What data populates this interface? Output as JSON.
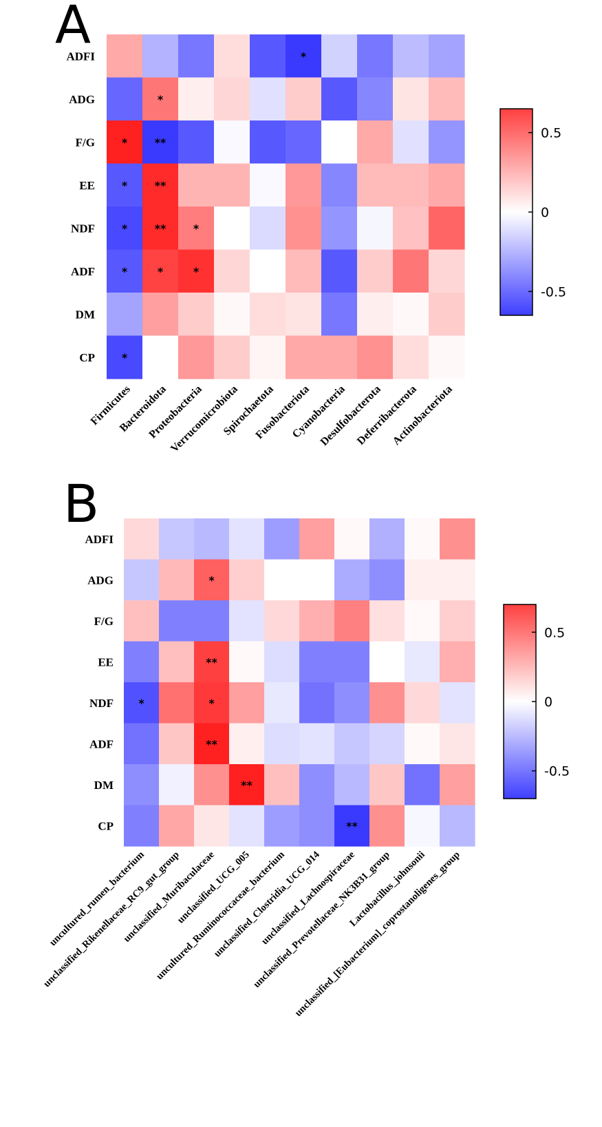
{
  "chart_data": [
    {
      "type": "heatmap",
      "panel": "A",
      "rows": [
        "ADFI",
        "ADG",
        "F/G",
        "EE",
        "NDF",
        "ADF",
        "DM",
        "CP"
      ],
      "columns": [
        "Firmicutes",
        "Bacteroidota",
        "Proteobacteria",
        "Verrucomicrobiota",
        "Spirochaetota",
        "Fusobacteriota",
        "Cyanobacteria",
        "Desulfobacterota",
        "Deferribacterota",
        "Actinobacteriota"
      ],
      "values": [
        [
          0.25,
          -0.25,
          -0.45,
          0.1,
          -0.55,
          -0.65,
          -0.15,
          -0.45,
          -0.22,
          -0.3
        ],
        [
          -0.5,
          0.4,
          0.05,
          0.12,
          -0.1,
          0.15,
          -0.55,
          -0.4,
          0.08,
          0.2
        ],
        [
          0.65,
          -0.65,
          -0.55,
          -0.02,
          -0.55,
          -0.5,
          0.0,
          0.25,
          -0.1,
          -0.35
        ],
        [
          -0.55,
          0.62,
          0.22,
          0.22,
          -0.02,
          0.3,
          -0.4,
          0.2,
          0.2,
          0.25
        ],
        [
          -0.6,
          0.62,
          0.38,
          0.0,
          -0.12,
          0.32,
          -0.35,
          -0.03,
          0.18,
          0.45
        ],
        [
          -0.55,
          0.55,
          0.6,
          0.12,
          0.0,
          0.2,
          -0.55,
          0.15,
          0.4,
          0.12
        ],
        [
          -0.3,
          0.28,
          0.15,
          0.02,
          0.1,
          0.08,
          -0.45,
          0.05,
          0.02,
          0.15
        ],
        [
          -0.6,
          0.0,
          0.3,
          0.15,
          0.03,
          0.25,
          0.25,
          0.32,
          0.1,
          0.02
        ]
      ],
      "stars": [
        [
          "",
          "",
          "",
          "",
          "",
          "*",
          "",
          "",
          "",
          ""
        ],
        [
          "",
          "*",
          "",
          "",
          "",
          "",
          "",
          "",
          "",
          ""
        ],
        [
          "*",
          "**",
          "",
          "",
          "",
          "",
          "",
          "",
          "",
          ""
        ],
        [
          "*",
          "**",
          "",
          "",
          "",
          "",
          "",
          "",
          "",
          ""
        ],
        [
          "*",
          "**",
          "*",
          "",
          "",
          "",
          "",
          "",
          "",
          ""
        ],
        [
          "*",
          "*",
          "*",
          "",
          "",
          "",
          "",
          "",
          "",
          ""
        ],
        [
          "",
          "",
          "",
          "",
          "",
          "",
          "",
          "",
          "",
          ""
        ],
        [
          "*",
          "",
          "",
          "",
          "",
          "",
          "",
          "",
          "",
          ""
        ]
      ],
      "colorbar": {
        "ticks": [
          0.5,
          0,
          -0.5
        ],
        "tick_labels": [
          "0.5",
          "0",
          "-0.5"
        ],
        "min": -0.65,
        "max": 0.65
      },
      "colors": {
        "low": "#3a3aff",
        "mid": "#ffffff",
        "high": "#ff2020"
      }
    },
    {
      "type": "heatmap",
      "panel": "B",
      "rows": [
        "ADFI",
        "ADG",
        "F/G",
        "EE",
        "NDF",
        "ADF",
        "DM",
        "CP"
      ],
      "columns": [
        "uncultured_rumen_bacterium",
        "unclassified_Rikenellaceae_RC9_gut_group",
        "unclassified_Muribaculaceae",
        "unclassified_UCG_005",
        "uncultured_Ruminococcaceae_bacterium",
        "unclassified_Clostridia_UCG_014",
        "unclassified_Lachnospiraceae",
        "unclassified_Prevotellaceae_NK3B31_group",
        "Lactobacillus_johnsonii",
        "unclassified_[Eubacterium]_coprostanoligenes_group"
      ],
      "values": [
        [
          0.12,
          -0.2,
          -0.25,
          -0.1,
          -0.35,
          0.3,
          0.02,
          -0.28,
          0.02,
          0.35
        ],
        [
          -0.2,
          0.22,
          0.5,
          0.15,
          0.0,
          0.0,
          -0.3,
          -0.4,
          0.05,
          0.05
        ],
        [
          0.2,
          -0.45,
          -0.45,
          -0.1,
          0.12,
          0.25,
          0.4,
          0.1,
          0.02,
          0.15
        ],
        [
          -0.45,
          0.2,
          0.6,
          0.02,
          -0.12,
          -0.45,
          -0.45,
          0.0,
          -0.08,
          0.25
        ],
        [
          -0.62,
          0.45,
          0.62,
          0.3,
          -0.08,
          -0.5,
          -0.4,
          0.35,
          0.12,
          -0.1
        ],
        [
          -0.5,
          0.18,
          0.7,
          0.05,
          -0.12,
          -0.1,
          -0.2,
          -0.15,
          0.02,
          0.08
        ],
        [
          -0.4,
          -0.05,
          0.35,
          0.7,
          0.2,
          -0.4,
          -0.25,
          0.18,
          -0.5,
          0.3
        ],
        [
          -0.45,
          0.28,
          0.08,
          -0.1,
          -0.35,
          -0.4,
          -0.7,
          0.35,
          -0.03,
          -0.25
        ]
      ],
      "stars": [
        [
          "",
          "",
          "",
          "",
          "",
          "",
          "",
          "",
          "",
          ""
        ],
        [
          "",
          "",
          "*",
          "",
          "",
          "",
          "",
          "",
          "",
          ""
        ],
        [
          "",
          "",
          "",
          "",
          "",
          "",
          "",
          "",
          "",
          ""
        ],
        [
          "",
          "",
          "**",
          "",
          "",
          "",
          "",
          "",
          "",
          ""
        ],
        [
          "*",
          "",
          "*",
          "",
          "",
          "",
          "",
          "",
          "",
          ""
        ],
        [
          "",
          "",
          "**",
          "",
          "",
          "",
          "",
          "",
          "",
          ""
        ],
        [
          "",
          "",
          "",
          "**",
          "",
          "",
          "",
          "",
          "",
          ""
        ],
        [
          "",
          "",
          "",
          "",
          "",
          "",
          "**",
          "",
          "",
          ""
        ]
      ],
      "colorbar": {
        "ticks": [
          0.5,
          0,
          -0.5
        ],
        "tick_labels": [
          "0.5",
          "0",
          "-0.5"
        ],
        "min": -0.7,
        "max": 0.7
      },
      "colors": {
        "low": "#3a3aff",
        "mid": "#ffffff",
        "high": "#ff2020"
      }
    }
  ]
}
